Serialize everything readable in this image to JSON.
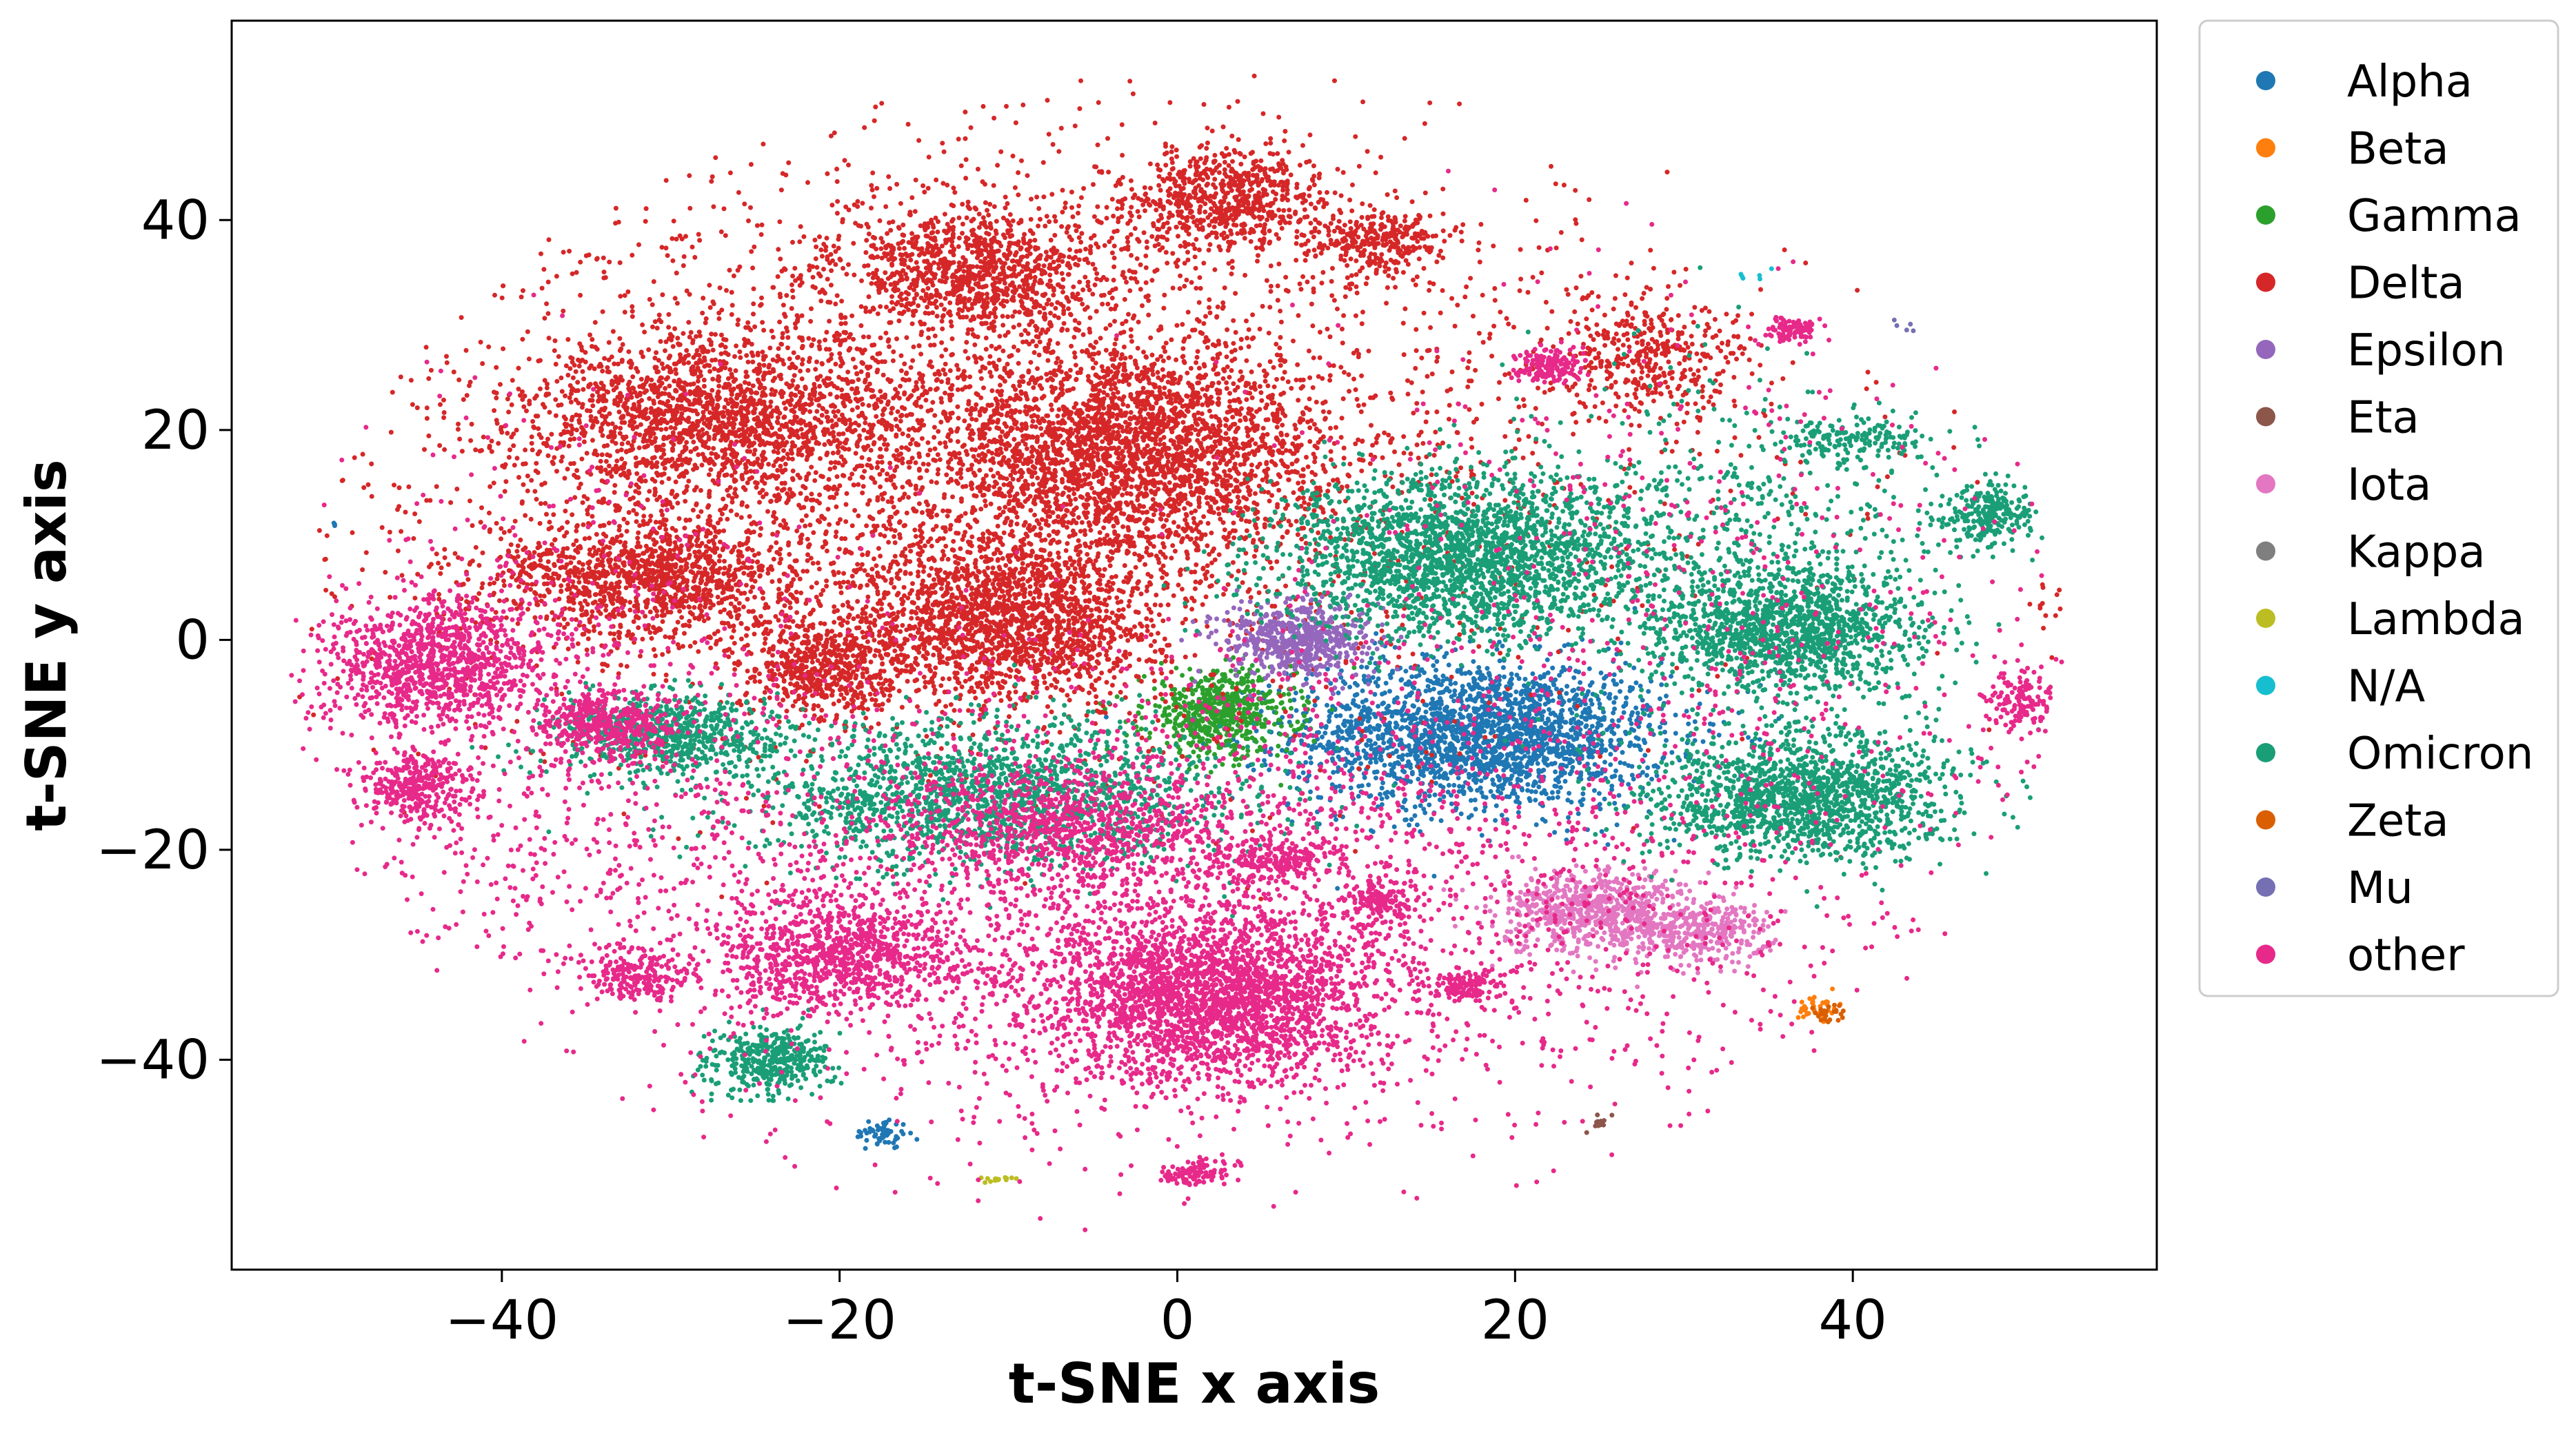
{
  "chart_data": {
    "type": "scatter",
    "xlabel": "t-SNE x axis",
    "ylabel": "t-SNE y axis",
    "xlim": [
      -56,
      58
    ],
    "ylim": [
      -60,
      59
    ],
    "x_ticks": [
      -40,
      -20,
      0,
      20,
      40
    ],
    "y_ticks": [
      -40,
      -20,
      0,
      20,
      40
    ],
    "x_tick_labels": [
      "−40",
      "−20",
      "0",
      "20",
      "40"
    ],
    "y_tick_labels": [
      "−40",
      "−20",
      "0",
      "20",
      "40"
    ],
    "grid": false,
    "legend_position": "outside-right",
    "series": [
      {
        "name": "Alpha",
        "color": "#1f77b4",
        "clusters": [
          {
            "cx": 18,
            "cy": -9,
            "sx": 5.5,
            "sy": 3.5,
            "n": 2200
          },
          {
            "cx": -17.5,
            "cy": -47,
            "sx": 0.8,
            "sy": 0.7,
            "n": 60
          },
          {
            "cx": -50,
            "cy": 11,
            "sx": 0.2,
            "sy": 0.2,
            "n": 3
          }
        ]
      },
      {
        "name": "Beta",
        "color": "#ff7f0e",
        "clusters": [
          {
            "cx": 38,
            "cy": -35,
            "sx": 0.6,
            "sy": 0.6,
            "n": 40
          }
        ]
      },
      {
        "name": "Gamma",
        "color": "#2ca02c",
        "clusters": [
          {
            "cx": 2.5,
            "cy": -7,
            "sx": 2.2,
            "sy": 2.0,
            "n": 600
          }
        ]
      },
      {
        "name": "Delta",
        "color": "#d62728",
        "clusters": [
          {
            "cx": -3,
            "cy": 18,
            "sx": 6.0,
            "sy": 5.0,
            "n": 2600
          },
          {
            "cx": -10,
            "cy": 2,
            "sx": 4.5,
            "sy": 4.0,
            "n": 1800
          },
          {
            "cx": -27,
            "cy": 21,
            "sx": 6.0,
            "sy": 4.0,
            "n": 1800
          },
          {
            "cx": -31,
            "cy": 6,
            "sx": 5.0,
            "sy": 3.0,
            "n": 1300
          },
          {
            "cx": -12,
            "cy": 35,
            "sx": 4.0,
            "sy": 3.0,
            "n": 1000
          },
          {
            "cx": 3,
            "cy": 42,
            "sx": 3.0,
            "sy": 2.5,
            "n": 700
          },
          {
            "cx": -21,
            "cy": -3,
            "sx": 2.5,
            "sy": 2.5,
            "n": 600
          },
          {
            "cx": 12,
            "cy": 38,
            "sx": 2.0,
            "sy": 1.5,
            "n": 300
          },
          {
            "cx": 28,
            "cy": 27,
            "sx": 3.0,
            "sy": 3.0,
            "n": 400
          },
          {
            "cx": -10,
            "cy": 20,
            "sx": 20.0,
            "sy": 15.0,
            "n": 3200
          },
          {
            "cx": 52,
            "cy": 3,
            "sx": 0.8,
            "sy": 1.5,
            "n": 20
          }
        ]
      },
      {
        "name": "Epsilon",
        "color": "#9467bd",
        "clusters": [
          {
            "cx": 7,
            "cy": 0,
            "sx": 2.2,
            "sy": 1.8,
            "n": 600
          }
        ]
      },
      {
        "name": "Eta",
        "color": "#8c564b",
        "clusters": [
          {
            "cx": 25,
            "cy": -46,
            "sx": 0.5,
            "sy": 0.4,
            "n": 12
          }
        ]
      },
      {
        "name": "Iota",
        "color": "#e377c2",
        "clusters": [
          {
            "cx": 25,
            "cy": -26,
            "sx": 3.0,
            "sy": 2.0,
            "n": 700
          },
          {
            "cx": 31,
            "cy": -28,
            "sx": 2.0,
            "sy": 1.5,
            "n": 300
          }
        ]
      },
      {
        "name": "Kappa",
        "color": "#7f7f7f",
        "clusters": [
          {
            "cx": -5,
            "cy": -15,
            "sx": 0.8,
            "sy": 0.8,
            "n": 8
          }
        ]
      },
      {
        "name": "Lambda",
        "color": "#bcbd22",
        "clusters": [
          {
            "cx": -11,
            "cy": -51.5,
            "sx": 0.8,
            "sy": 0.2,
            "n": 14
          }
        ]
      },
      {
        "name": "N/A",
        "color": "#17becf",
        "clusters": [
          {
            "cx": 34,
            "cy": 35,
            "sx": 0.6,
            "sy": 0.6,
            "n": 6
          }
        ]
      },
      {
        "name": "Omicron",
        "color": "#1a9e77",
        "clusters": [
          {
            "cx": 17,
            "cy": 8,
            "sx": 5.5,
            "sy": 4.0,
            "n": 2300
          },
          {
            "cx": 36,
            "cy": 1,
            "sx": 4.0,
            "sy": 3.0,
            "n": 1300
          },
          {
            "cx": 37,
            "cy": -15,
            "sx": 4.5,
            "sy": 3.0,
            "n": 1500
          },
          {
            "cx": -11,
            "cy": -15,
            "sx": 7.0,
            "sy": 3.5,
            "n": 1700
          },
          {
            "cx": -30,
            "cy": -9,
            "sx": 3.5,
            "sy": 2.0,
            "n": 700
          },
          {
            "cx": -24,
            "cy": -40,
            "sx": 1.8,
            "sy": 1.5,
            "n": 400
          },
          {
            "cx": 48,
            "cy": 12,
            "sx": 1.5,
            "sy": 1.5,
            "n": 250
          },
          {
            "cx": 40,
            "cy": 19,
            "sx": 2.0,
            "sy": 1.0,
            "n": 150
          },
          {
            "cx": 34,
            "cy": 10,
            "sx": 6.0,
            "sy": 8.0,
            "n": 500
          }
        ]
      },
      {
        "name": "Zeta",
        "color": "#d95f02",
        "clusters": [
          {
            "cx": 38.5,
            "cy": -35.5,
            "sx": 0.5,
            "sy": 0.5,
            "n": 25
          }
        ]
      },
      {
        "name": "Mu",
        "color": "#7570b3",
        "clusters": [
          {
            "cx": 43,
            "cy": 30,
            "sx": 0.3,
            "sy": 0.3,
            "n": 5
          }
        ]
      },
      {
        "name": "other",
        "color": "#e7298a",
        "clusters": [
          {
            "cx": 2,
            "cy": -34,
            "sx": 5.0,
            "sy": 4.0,
            "n": 2400
          },
          {
            "cx": -20,
            "cy": -30,
            "sx": 3.5,
            "sy": 2.5,
            "n": 900
          },
          {
            "cx": -44,
            "cy": -2,
            "sx": 3.0,
            "sy": 3.0,
            "n": 1000
          },
          {
            "cx": -45,
            "cy": -14,
            "sx": 1.5,
            "sy": 1.5,
            "n": 300
          },
          {
            "cx": -34,
            "cy": -8,
            "sx": 2.0,
            "sy": 1.5,
            "n": 400
          },
          {
            "cx": -7,
            "cy": -18,
            "sx": 5.0,
            "sy": 3.0,
            "n": 800
          },
          {
            "cx": -32,
            "cy": -32,
            "sx": 1.5,
            "sy": 1.0,
            "n": 200
          },
          {
            "cx": 6,
            "cy": -21,
            "sx": 1.5,
            "sy": 1.0,
            "n": 200
          },
          {
            "cx": 12,
            "cy": -25,
            "sx": 1.0,
            "sy": 0.8,
            "n": 120
          },
          {
            "cx": 17,
            "cy": -33,
            "sx": 1.0,
            "sy": 0.8,
            "n": 120
          },
          {
            "cx": 22,
            "cy": 26,
            "sx": 1.0,
            "sy": 0.8,
            "n": 150
          },
          {
            "cx": 50,
            "cy": -6,
            "sx": 1.0,
            "sy": 1.5,
            "n": 150
          },
          {
            "cx": 36.5,
            "cy": 29.5,
            "sx": 0.8,
            "sy": 0.6,
            "n": 90
          },
          {
            "cx": 0,
            "cy": -25,
            "sx": 20.0,
            "sy": 12.0,
            "n": 3000
          },
          {
            "cx": 1,
            "cy": -51,
            "sx": 1.0,
            "sy": 0.6,
            "n": 100
          },
          {
            "cx": 30,
            "cy": 5,
            "sx": 12.0,
            "sy": 14.0,
            "n": 600
          },
          {
            "cx": -38,
            "cy": -8,
            "sx": 8.0,
            "sy": 14.0,
            "n": 800
          }
        ]
      }
    ]
  }
}
